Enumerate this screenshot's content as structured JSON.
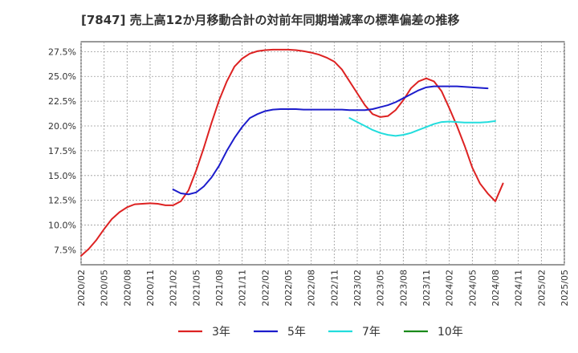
{
  "chart_data": {
    "type": "line",
    "title": "[7847]  売上高12か月移動合計の対前年同期増減率の標準偏差の推移",
    "xlabel": "",
    "ylabel": "",
    "ylim": [
      6.0,
      28.5
    ],
    "yticks": [
      7.5,
      10.0,
      12.5,
      15.0,
      17.5,
      20.0,
      22.5,
      25.0,
      27.5
    ],
    "ytick_labels": [
      "7.5%",
      "10.0%",
      "12.5%",
      "15.0%",
      "17.5%",
      "20.0%",
      "22.5%",
      "25.0%",
      "27.5%"
    ],
    "x_tick_labels": [
      "2020/02",
      "2020/05",
      "2020/08",
      "2020/11",
      "2021/02",
      "2021/05",
      "2021/08",
      "2021/11",
      "2022/02",
      "2022/05",
      "2022/08",
      "2022/11",
      "2023/02",
      "2023/05",
      "2023/08",
      "2023/11",
      "2024/02",
      "2024/05",
      "2024/08",
      "2024/11",
      "2025/02",
      "2025/05"
    ],
    "x_unit": "months since 2020/02",
    "xlim": [
      0,
      63
    ],
    "grid": true,
    "legend_position": "bottom",
    "series": [
      {
        "name": "3年",
        "color": "#dd2222",
        "x": [
          0,
          1,
          2,
          3,
          4,
          5,
          6,
          7,
          8,
          9,
          10,
          11,
          12,
          13,
          14,
          15,
          16,
          17,
          18,
          19,
          20,
          21,
          22,
          23,
          24,
          25,
          26,
          27,
          28,
          29,
          30,
          31,
          32,
          33,
          34,
          35,
          36,
          37,
          38,
          39,
          40,
          41,
          42,
          43,
          44,
          45,
          46,
          47,
          48,
          49,
          50,
          51,
          52,
          53,
          54,
          55,
          56,
          57,
          58,
          59,
          60
        ],
        "values": [
          6.9,
          7.6,
          8.5,
          9.6,
          10.6,
          11.3,
          11.8,
          12.1,
          12.15,
          12.2,
          12.15,
          12.0,
          12.0,
          12.4,
          13.5,
          15.5,
          17.8,
          20.3,
          22.6,
          24.5,
          26.0,
          26.8,
          27.3,
          27.55,
          27.65,
          27.7,
          27.7,
          27.7,
          27.65,
          27.55,
          27.4,
          27.2,
          26.9,
          26.5,
          25.7,
          24.5,
          23.3,
          22.1,
          21.2,
          20.9,
          21.0,
          21.6,
          22.6,
          23.8,
          24.5,
          24.8,
          24.5,
          23.5,
          21.8,
          20.0,
          18.0,
          15.8,
          14.2,
          13.2,
          12.4,
          14.2,
          null,
          null,
          null,
          null,
          null
        ]
      },
      {
        "name": "5年",
        "color": "#1c1ccc",
        "x": [
          12,
          13,
          14,
          15,
          16,
          17,
          18,
          19,
          20,
          21,
          22,
          23,
          24,
          25,
          26,
          27,
          28,
          29,
          30,
          31,
          32,
          33,
          34,
          35,
          36,
          37,
          38,
          39,
          40,
          41,
          42,
          43,
          44,
          45,
          46,
          47,
          48,
          49,
          50,
          51,
          52,
          53,
          54,
          55,
          56,
          57,
          58,
          59,
          60
        ],
        "values": [
          13.6,
          13.2,
          13.1,
          13.3,
          13.9,
          14.8,
          16.0,
          17.5,
          18.8,
          19.9,
          20.8,
          21.2,
          21.5,
          21.65,
          21.7,
          21.7,
          21.7,
          21.65,
          21.65,
          21.65,
          21.65,
          21.65,
          21.65,
          21.6,
          21.6,
          21.6,
          21.7,
          21.9,
          22.1,
          22.4,
          22.8,
          23.2,
          23.6,
          23.9,
          24.0,
          24.0,
          24.0,
          24.0,
          23.95,
          23.9,
          23.85,
          23.8,
          null,
          null,
          null,
          null,
          null,
          null,
          null
        ]
      },
      {
        "name": "7年",
        "color": "#22dddd",
        "x": [
          35,
          36,
          37,
          38,
          39,
          40,
          41,
          42,
          43,
          44,
          45,
          46,
          47,
          48,
          49,
          50,
          51,
          52,
          53,
          54,
          55,
          56,
          57,
          58,
          59,
          60
        ],
        "values": [
          20.8,
          20.4,
          20.0,
          19.6,
          19.3,
          19.1,
          19.0,
          19.1,
          19.3,
          19.6,
          19.9,
          20.2,
          20.4,
          20.45,
          20.4,
          20.35,
          20.35,
          20.35,
          20.4,
          20.5,
          null,
          null,
          null,
          null,
          null,
          null
        ]
      },
      {
        "name": "10年",
        "color": "#1a8a1a",
        "x": [],
        "values": []
      }
    ]
  }
}
